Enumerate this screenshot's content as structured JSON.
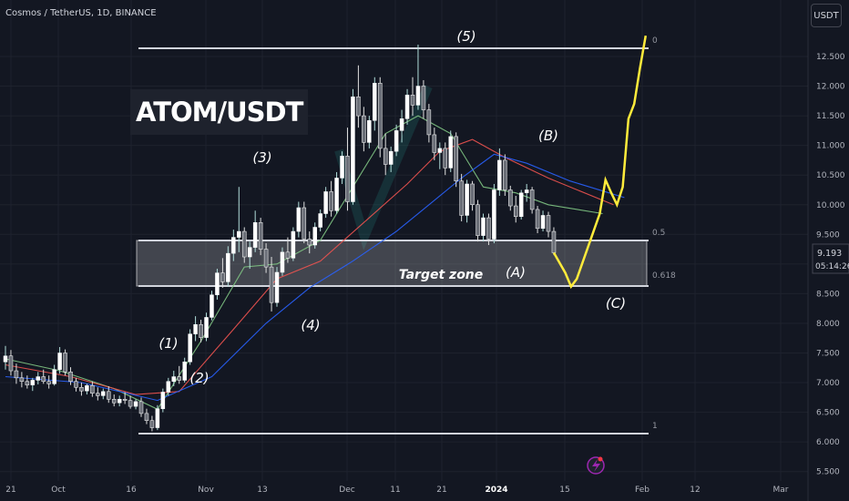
{
  "header": {
    "symbol_line": "Cosmos / TetherUS, 1D, BINANCE"
  },
  "currency_button": "USDT",
  "overlay_title": "ATOM/USDT",
  "price_tag": {
    "price": "9.193",
    "countdown": "05:14:26"
  },
  "fib_labels": {
    "top": "0",
    "mid": "0.5",
    "low": "0.618",
    "bottom": "1"
  },
  "zone_label": "Target zone",
  "wave_labels": [
    "(1)",
    "(2)",
    "(3)",
    "(4)",
    "(5)",
    "(A)",
    "(B)",
    "(C)"
  ],
  "colors": {
    "up": "#26a69a",
    "down": "#ef5350",
    "projection": "#ffeb3b",
    "ma_red": "#ef5350",
    "ma_blue": "#2962ff",
    "ma_green": "#81c784"
  },
  "chart_data": {
    "type": "candlestick",
    "title": "Cosmos / TetherUS, 1D, BINANCE",
    "y_ticks": [
      "12.500",
      "12.000",
      "11.500",
      "11.000",
      "10.500",
      "10.000",
      "9.500",
      "9.000",
      "8.500",
      "8.000",
      "7.500",
      "7.000",
      "6.500",
      "6.000",
      "5.500"
    ],
    "x_ticks": [
      "21",
      "Oct",
      "16",
      "Nov",
      "13",
      "Dec",
      "11",
      "21",
      "2024",
      "15",
      "Feb",
      "12",
      "Mar"
    ],
    "ylim": [
      5.4,
      12.9
    ],
    "fib_levels": {
      "0": 12.6,
      "0.5": 9.37,
      "0.618": 8.6,
      "1": 6.15
    },
    "last_price": 9.193,
    "candles": [
      [
        7.35,
        7.62,
        7.22,
        7.45
      ],
      [
        7.45,
        7.55,
        7.12,
        7.2
      ],
      [
        7.2,
        7.32,
        6.98,
        7.08
      ],
      [
        7.08,
        7.18,
        6.92,
        7.02
      ],
      [
        7.02,
        7.12,
        6.9,
        6.96
      ],
      [
        6.96,
        7.08,
        6.86,
        7.04
      ],
      [
        7.04,
        7.18,
        6.97,
        7.1
      ],
      [
        7.1,
        7.22,
        6.98,
        7.02
      ],
      [
        7.02,
        7.12,
        6.9,
        6.98
      ],
      [
        6.98,
        7.3,
        6.95,
        7.22
      ],
      [
        7.22,
        7.6,
        7.15,
        7.5
      ],
      [
        7.5,
        7.56,
        7.12,
        7.18
      ],
      [
        7.18,
        7.26,
        6.96,
        7.02
      ],
      [
        7.02,
        7.08,
        6.85,
        6.92
      ],
      [
        6.92,
        7.0,
        6.78,
        6.86
      ],
      [
        6.86,
        6.98,
        6.8,
        6.95
      ],
      [
        6.95,
        7.02,
        6.76,
        6.82
      ],
      [
        6.82,
        6.92,
        6.7,
        6.78
      ],
      [
        6.78,
        6.9,
        6.72,
        6.85
      ],
      [
        6.85,
        6.94,
        6.66,
        6.72
      ],
      [
        6.72,
        6.8,
        6.6,
        6.66
      ],
      [
        6.66,
        6.78,
        6.6,
        6.72
      ],
      [
        6.72,
        6.84,
        6.64,
        6.7
      ],
      [
        6.7,
        6.78,
        6.56,
        6.6
      ],
      [
        6.6,
        6.72,
        6.55,
        6.68
      ],
      [
        6.68,
        6.75,
        6.42,
        6.48
      ],
      [
        6.48,
        6.56,
        6.3,
        6.36
      ],
      [
        6.36,
        6.44,
        6.18,
        6.24
      ],
      [
        6.24,
        6.62,
        6.2,
        6.56
      ],
      [
        6.56,
        6.9,
        6.5,
        6.84
      ],
      [
        6.84,
        7.08,
        6.78,
        7.02
      ],
      [
        7.02,
        7.2,
        6.94,
        7.1
      ],
      [
        7.1,
        7.28,
        6.98,
        7.04
      ],
      [
        7.04,
        7.42,
        7.0,
        7.35
      ],
      [
        7.35,
        7.9,
        7.3,
        7.82
      ],
      [
        7.82,
        8.12,
        7.7,
        7.98
      ],
      [
        7.98,
        8.06,
        7.68,
        7.76
      ],
      [
        7.76,
        8.18,
        7.7,
        8.1
      ],
      [
        8.1,
        8.55,
        8.05,
        8.48
      ],
      [
        8.48,
        8.92,
        8.4,
        8.85
      ],
      [
        8.85,
        9.1,
        8.6,
        8.7
      ],
      [
        8.7,
        9.3,
        8.62,
        9.18
      ],
      [
        9.18,
        9.58,
        9.05,
        9.45
      ],
      [
        9.45,
        10.3,
        9.2,
        9.55
      ],
      [
        9.55,
        9.62,
        9.02,
        9.12
      ],
      [
        9.12,
        9.38,
        8.92,
        9.28
      ],
      [
        9.28,
        9.9,
        9.2,
        9.7
      ],
      [
        9.7,
        9.78,
        9.15,
        9.25
      ],
      [
        9.25,
        9.35,
        8.85,
        8.95
      ],
      [
        8.95,
        9.12,
        8.2,
        8.35
      ],
      [
        8.35,
        8.95,
        8.28,
        8.86
      ],
      [
        8.86,
        9.28,
        8.8,
        9.2
      ],
      [
        9.2,
        9.45,
        9.02,
        9.1
      ],
      [
        9.1,
        9.62,
        9.05,
        9.55
      ],
      [
        9.55,
        10.05,
        9.45,
        9.95
      ],
      [
        9.95,
        10.05,
        9.35,
        9.42
      ],
      [
        9.42,
        9.55,
        9.18,
        9.32
      ],
      [
        9.32,
        9.7,
        9.26,
        9.62
      ],
      [
        9.62,
        9.92,
        9.55,
        9.85
      ],
      [
        9.85,
        10.3,
        9.78,
        10.22
      ],
      [
        10.22,
        10.4,
        9.8,
        9.9
      ],
      [
        9.9,
        10.55,
        9.85,
        10.45
      ],
      [
        10.45,
        10.9,
        10.35,
        10.82
      ],
      [
        10.82,
        11.3,
        9.9,
        10.05
      ],
      [
        10.05,
        11.95,
        10.0,
        11.82
      ],
      [
        11.82,
        12.35,
        11.3,
        11.5
      ],
      [
        11.5,
        11.65,
        10.9,
        11.05
      ],
      [
        11.05,
        11.5,
        10.95,
        11.42
      ],
      [
        11.42,
        12.15,
        11.25,
        12.05
      ],
      [
        12.05,
        12.15,
        10.8,
        10.95
      ],
      [
        10.95,
        11.2,
        10.5,
        10.68
      ],
      [
        10.68,
        10.98,
        10.55,
        10.9
      ],
      [
        10.9,
        11.35,
        10.82,
        11.25
      ],
      [
        11.25,
        11.6,
        11.05,
        11.45
      ],
      [
        11.45,
        11.95,
        11.35,
        11.85
      ],
      [
        11.85,
        12.15,
        11.5,
        11.68
      ],
      [
        11.68,
        12.7,
        11.6,
        12.0
      ],
      [
        12.0,
        12.1,
        11.45,
        11.6
      ],
      [
        11.6,
        11.7,
        11.05,
        11.18
      ],
      [
        11.18,
        11.3,
        10.75,
        10.88
      ],
      [
        10.88,
        11.05,
        10.6,
        10.95
      ],
      [
        10.95,
        11.05,
        10.5,
        10.62
      ],
      [
        10.62,
        11.25,
        10.55,
        11.15
      ],
      [
        11.15,
        11.22,
        10.3,
        10.4
      ],
      [
        10.4,
        10.52,
        9.72,
        9.82
      ],
      [
        9.82,
        10.42,
        9.7,
        10.35
      ],
      [
        10.35,
        10.4,
        9.9,
        10.0
      ],
      [
        10.0,
        10.08,
        9.38,
        9.48
      ],
      [
        9.48,
        9.85,
        9.38,
        9.78
      ],
      [
        9.78,
        9.85,
        9.32,
        9.42
      ],
      [
        9.42,
        10.35,
        9.35,
        10.25
      ],
      [
        10.25,
        10.95,
        10.15,
        10.75
      ],
      [
        10.75,
        10.85,
        10.15,
        10.25
      ],
      [
        10.25,
        10.32,
        9.9,
        9.98
      ],
      [
        9.98,
        10.15,
        9.7,
        9.8
      ],
      [
        9.8,
        10.25,
        9.75,
        10.2
      ],
      [
        10.2,
        10.35,
        10.05,
        10.25
      ],
      [
        10.25,
        10.3,
        9.85,
        9.92
      ],
      [
        9.92,
        9.98,
        9.52,
        9.6
      ],
      [
        9.6,
        9.9,
        9.55,
        9.82
      ],
      [
        9.82,
        9.88,
        9.45,
        9.55
      ],
      [
        9.55,
        9.62,
        9.15,
        9.19
      ]
    ],
    "series": [
      {
        "name": "",
        "color": "#81c784",
        "points": [
          [
            0,
            7.4
          ],
          [
            10,
            7.2
          ],
          [
            20,
            6.9
          ],
          [
            28,
            6.55
          ],
          [
            36,
            7.7
          ],
          [
            44,
            8.95
          ],
          [
            50,
            9.0
          ],
          [
            58,
            9.4
          ],
          [
            64,
            10.3
          ],
          [
            70,
            11.2
          ],
          [
            76,
            11.5
          ],
          [
            82,
            11.2
          ],
          [
            88,
            10.3
          ],
          [
            94,
            10.2
          ],
          [
            100,
            10.0
          ],
          [
            110,
            9.85
          ]
        ]
      },
      {
        "name": "",
        "color": "#ef5350",
        "points": [
          [
            0,
            7.3
          ],
          [
            12,
            7.1
          ],
          [
            24,
            6.8
          ],
          [
            32,
            6.85
          ],
          [
            42,
            7.9
          ],
          [
            50,
            8.75
          ],
          [
            58,
            9.05
          ],
          [
            66,
            9.7
          ],
          [
            74,
            10.35
          ],
          [
            80,
            10.9
          ],
          [
            86,
            11.1
          ],
          [
            92,
            10.8
          ],
          [
            100,
            10.45
          ],
          [
            112,
            10.0
          ]
        ]
      },
      {
        "name": "",
        "color": "#2962ff",
        "points": [
          [
            0,
            7.1
          ],
          [
            14,
            7.0
          ],
          [
            28,
            6.7
          ],
          [
            38,
            7.1
          ],
          [
            48,
            8.0
          ],
          [
            56,
            8.6
          ],
          [
            64,
            9.05
          ],
          [
            72,
            9.55
          ],
          [
            78,
            10.0
          ],
          [
            84,
            10.45
          ],
          [
            90,
            10.85
          ],
          [
            96,
            10.7
          ],
          [
            104,
            10.4
          ],
          [
            114,
            10.12
          ]
        ]
      }
    ],
    "projection": [
      [
        9.19,
        0
      ],
      [
        8.85,
        2
      ],
      [
        8.62,
        3
      ],
      [
        8.75,
        4
      ],
      [
        9.3,
        6
      ],
      [
        9.85,
        8
      ],
      [
        10.42,
        9
      ],
      [
        10.2,
        10
      ],
      [
        10.0,
        11
      ],
      [
        10.3,
        12
      ],
      [
        11.45,
        13
      ],
      [
        11.7,
        14
      ],
      [
        12.3,
        15
      ],
      [
        12.85,
        16
      ]
    ]
  }
}
